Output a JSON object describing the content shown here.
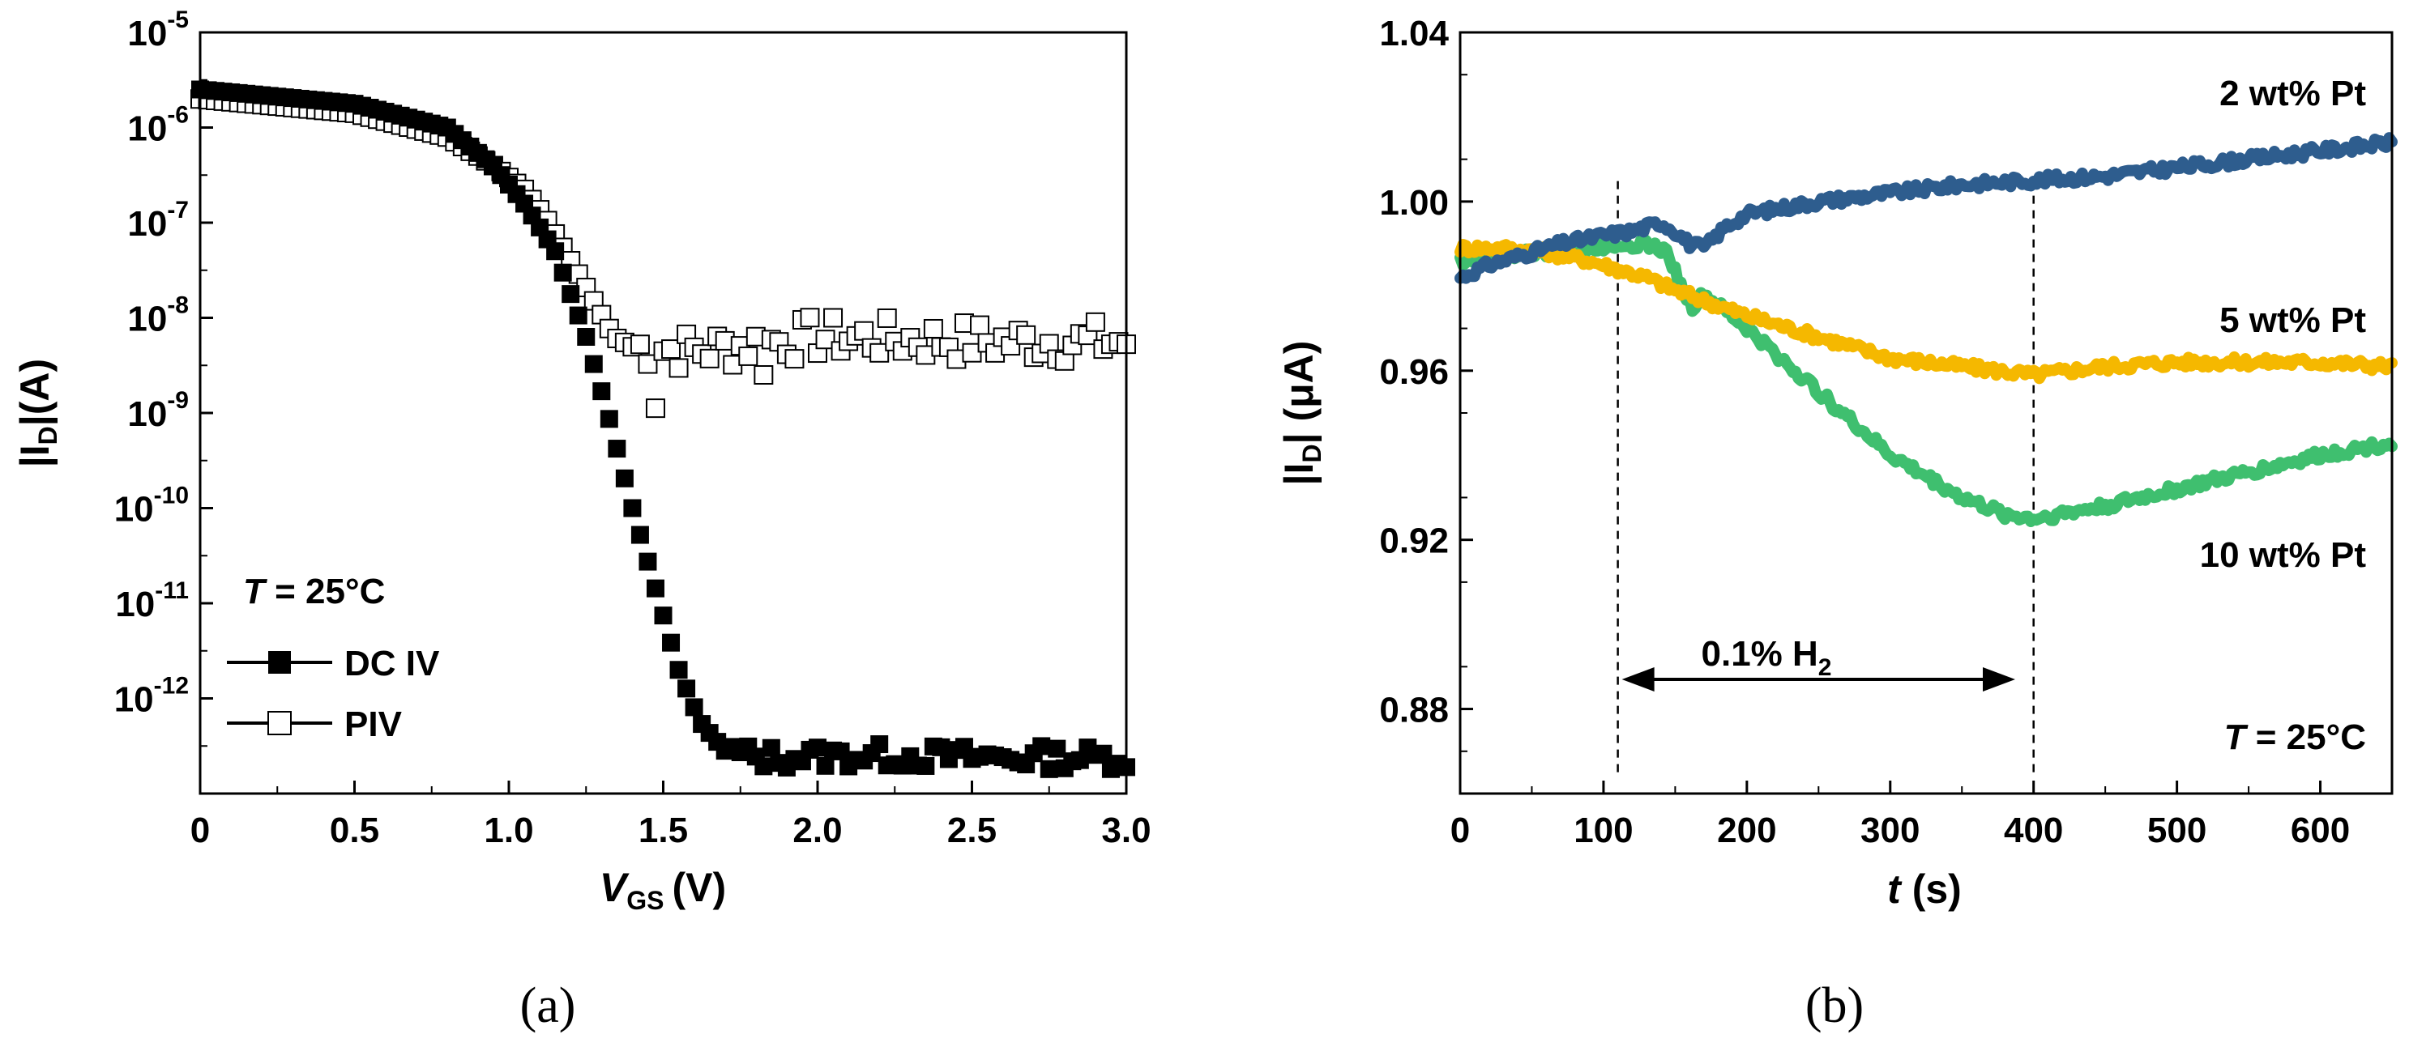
{
  "chart_data": [
    {
      "type": "scatter",
      "panel": "(a)",
      "caption": "(a)",
      "xlabel": {
        "main": "V",
        "sub": "GS",
        "unit": "(V)"
      },
      "ylabel": {
        "pre": "|I",
        "sub": "D",
        "post": "|(A)"
      },
      "yscale": "log",
      "xlim": [
        0,
        3.0
      ],
      "ylim_exp": [
        -13,
        -5
      ],
      "xticks": [
        "0",
        "0.5",
        "1.0",
        "1.5",
        "2.0",
        "2.5",
        "3.0"
      ],
      "yticks": [
        {
          "base": "10",
          "exp": "-5"
        },
        {
          "base": "10",
          "exp": "-6"
        },
        {
          "base": "10",
          "exp": "-7"
        },
        {
          "base": "10",
          "exp": "-8"
        },
        {
          "base": "10",
          "exp": "-9"
        },
        {
          "base": "10",
          "exp": "-10"
        },
        {
          "base": "10",
          "exp": "-11"
        },
        {
          "base": "10",
          "exp": "-12"
        }
      ],
      "annotation": {
        "var": "T",
        "rest": " = 25°C"
      },
      "legend_position": "lower-left",
      "series": [
        {
          "name": "DC IV",
          "marker": "filled-square",
          "points": [
            [
              0.0,
              -5.6
            ],
            [
              0.5,
              -5.75
            ],
            [
              0.8,
              -6.0
            ],
            [
              0.95,
              -6.4
            ],
            [
              1.05,
              -6.8
            ],
            [
              1.15,
              -7.3
            ],
            [
              1.25,
              -8.2
            ],
            [
              1.32,
              -9.0
            ],
            [
              1.4,
              -10.0
            ],
            [
              1.48,
              -10.9
            ],
            [
              1.55,
              -11.7
            ],
            [
              1.62,
              -12.25
            ],
            [
              1.7,
              -12.55
            ],
            [
              1.8,
              -12.62
            ],
            [
              2.2,
              -12.6
            ],
            [
              2.6,
              -12.62
            ],
            [
              3.0,
              -12.62
            ]
          ]
        },
        {
          "name": "PIV",
          "marker": "open-square",
          "points": [
            [
              0.0,
              -5.7
            ],
            [
              0.5,
              -5.85
            ],
            [
              0.8,
              -6.1
            ],
            [
              0.95,
              -6.4
            ],
            [
              1.05,
              -6.65
            ],
            [
              1.12,
              -6.95
            ],
            [
              1.2,
              -7.4
            ],
            [
              1.28,
              -7.85
            ],
            [
              1.34,
              -8.2
            ],
            [
              1.4,
              -8.3
            ],
            [
              1.6,
              -8.35
            ],
            [
              2.0,
              -8.2
            ],
            [
              2.5,
              -8.25
            ],
            [
              3.0,
              -8.25
            ]
          ]
        }
      ]
    },
    {
      "type": "line",
      "panel": "(b)",
      "caption": "(b)",
      "xlabel": {
        "main": "t",
        "unit": " (s)"
      },
      "ylabel": {
        "pre": "|I",
        "sub": "D",
        "post": "| (μA)"
      },
      "xlim": [
        0,
        650
      ],
      "ylim": [
        0.86,
        1.04
      ],
      "xticks": [
        "0",
        "100",
        "200",
        "300",
        "400",
        "500",
        "600"
      ],
      "yticks": [
        "0.88",
        "0.92",
        "0.96",
        "1.00",
        "1.04"
      ],
      "vlines": [
        110,
        400
      ],
      "arrow": {
        "from": 110,
        "to": 390,
        "y": 0.887,
        "label_pre": "0.1% H",
        "label_sub": "2"
      },
      "annotation": {
        "var": "T",
        "rest": " = 25°C"
      },
      "colors": {
        "2wt": "#2e5d8e",
        "5wt": "#f5b800",
        "10wt": "#3fbf6f"
      },
      "series": [
        {
          "name": "2 wt% Pt",
          "color": "#2e5d8e",
          "points": [
            [
              0,
              0.982
            ],
            [
              20,
              0.985
            ],
            [
              40,
              0.987
            ],
            [
              70,
              0.99
            ],
            [
              100,
              0.992
            ],
            [
              120,
              0.993
            ],
            [
              140,
              0.995
            ],
            [
              150,
              0.993
            ],
            [
              160,
              0.99
            ],
            [
              170,
              0.989
            ],
            [
              185,
              0.994
            ],
            [
              200,
              0.997
            ],
            [
              250,
              1.0
            ],
            [
              300,
              1.002
            ],
            [
              350,
              1.004
            ],
            [
              400,
              1.005
            ],
            [
              450,
              1.006
            ],
            [
              500,
              1.008
            ],
            [
              550,
              1.01
            ],
            [
              600,
              1.012
            ],
            [
              650,
              1.014
            ]
          ]
        },
        {
          "name": "5 wt% Pt",
          "color": "#f5b800",
          "points": [
            [
              0,
              0.989
            ],
            [
              30,
              0.989
            ],
            [
              60,
              0.988
            ],
            [
              90,
              0.986
            ],
            [
              110,
              0.984
            ],
            [
              130,
              0.982
            ],
            [
              150,
              0.979
            ],
            [
              175,
              0.976
            ],
            [
              200,
              0.973
            ],
            [
              250,
              0.968
            ],
            [
              300,
              0.963
            ],
            [
              350,
              0.961
            ],
            [
              400,
              0.959
            ],
            [
              450,
              0.961
            ],
            [
              500,
              0.962
            ],
            [
              550,
              0.962
            ],
            [
              600,
              0.962
            ],
            [
              650,
              0.961
            ]
          ]
        },
        {
          "name": "10 wt% Pt",
          "color": "#3fbf6f",
          "points": [
            [
              0,
              0.986
            ],
            [
              30,
              0.987
            ],
            [
              60,
              0.988
            ],
            [
              90,
              0.989
            ],
            [
              110,
              0.99
            ],
            [
              130,
              0.99
            ],
            [
              145,
              0.988
            ],
            [
              155,
              0.979
            ],
            [
              162,
              0.975
            ],
            [
              170,
              0.978
            ],
            [
              200,
              0.97
            ],
            [
              250,
              0.955
            ],
            [
              300,
              0.94
            ],
            [
              350,
              0.93
            ],
            [
              380,
              0.926
            ],
            [
              400,
              0.925
            ],
            [
              450,
              0.928
            ],
            [
              500,
              0.932
            ],
            [
              550,
              0.936
            ],
            [
              600,
              0.94
            ],
            [
              650,
              0.943
            ]
          ]
        }
      ]
    }
  ]
}
